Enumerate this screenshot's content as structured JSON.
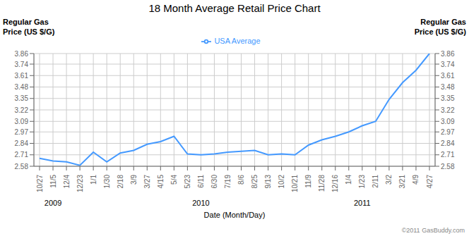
{
  "chart_data": {
    "type": "line",
    "title": "18 Month Average Retail Price Chart",
    "y_label": [
      "Regular Gas",
      "Price (US $/G)"
    ],
    "y2_label": [
      "Regular Gas",
      "Price (US $/G)"
    ],
    "x_label": "Date (Month/Day)",
    "categories": [
      "10/27",
      "11/5",
      "12/4",
      "12/23",
      "1/1",
      "1/30",
      "2/18",
      "3/9",
      "3/27",
      "4/15",
      "5/4",
      "5/23",
      "6/11",
      "6/30",
      "7/19",
      "8/6",
      "8/25",
      "9/13",
      "10/2",
      "10/21",
      "11/9",
      "11/28",
      "12/16",
      "1/4",
      "1/23",
      "2/11",
      "3/2",
      "3/21",
      "4/9",
      "4/27"
    ],
    "series": [
      {
        "name": "USA Average",
        "color": "#4499ff",
        "values": [
          2.67,
          2.64,
          2.63,
          2.59,
          2.74,
          2.63,
          2.73,
          2.76,
          2.83,
          2.86,
          2.92,
          2.72,
          2.71,
          2.72,
          2.74,
          2.75,
          2.76,
          2.71,
          2.72,
          2.71,
          2.82,
          2.88,
          2.92,
          2.97,
          3.04,
          3.09,
          3.34,
          3.53,
          3.67,
          3.86
        ]
      }
    ],
    "ylim": [
      2.58,
      3.86
    ],
    "yticks": [
      2.58,
      2.71,
      2.84,
      2.97,
      3.09,
      3.22,
      3.35,
      3.48,
      3.61,
      3.74,
      3.86
    ],
    "y2lim": [
      2.58,
      3.86
    ],
    "y2ticks": [
      2.58,
      2.71,
      2.84,
      2.97,
      3.09,
      3.22,
      3.35,
      3.48,
      3.61,
      3.74,
      3.86
    ],
    "grid": true,
    "legend": "top",
    "annotations": [
      {
        "text": "2009",
        "x": "11/5"
      },
      {
        "text": "2010",
        "x": "6/11"
      },
      {
        "text": "2011",
        "x": "1/23"
      },
      {
        "text": "©2011 GasBuddy.com"
      }
    ]
  }
}
